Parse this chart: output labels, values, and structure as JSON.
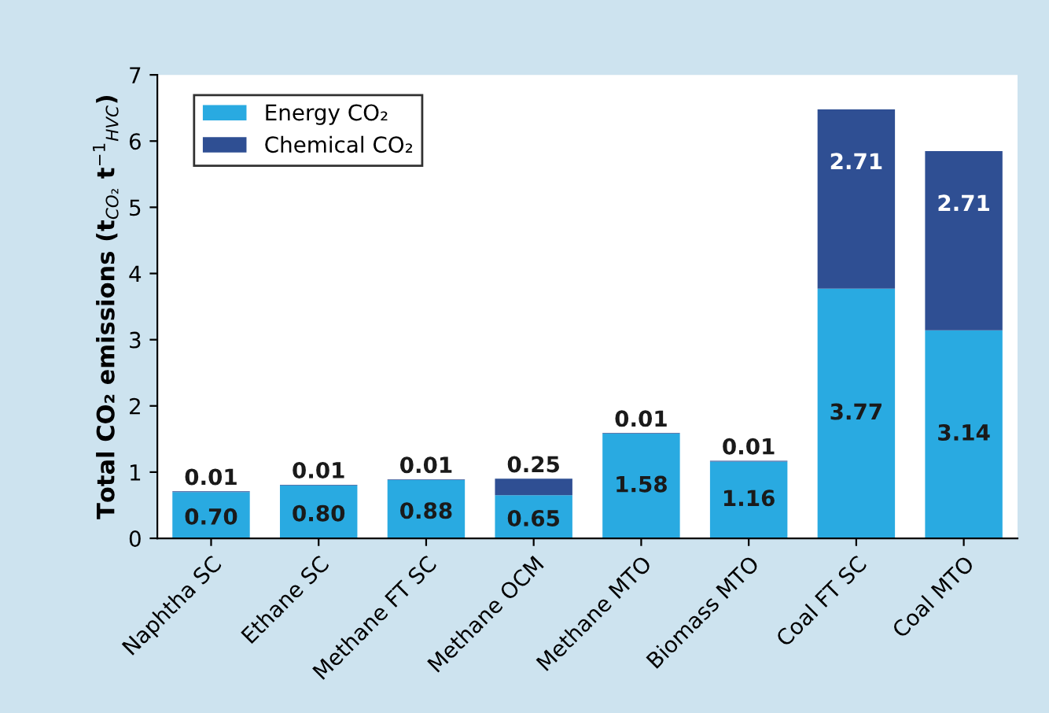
{
  "chart_data": {
    "type": "bar",
    "stacked": true,
    "ylabel": "Total CO₂ emissions (t$_{CO₂}$ t$^{−1}$$_{HVC}$)",
    "categories": [
      "Naphtha SC",
      "Ethane SC",
      "Methane FT SC",
      "Methane OCM",
      "Methane MTO",
      "Biomass MTO",
      "Coal FT SC",
      "Coal MTO"
    ],
    "series": [
      {
        "name": "Energy CO₂",
        "color": "#29aae1",
        "values": [
          0.7,
          0.8,
          0.88,
          0.65,
          1.58,
          1.16,
          3.77,
          3.14
        ],
        "value_labels": [
          "0.70",
          "0.80",
          "0.88",
          "0.65",
          "1.58",
          "1.16",
          "3.77",
          "3.14"
        ]
      },
      {
        "name": "Chemical CO₂",
        "color": "#2f4f93",
        "values": [
          0.01,
          0.01,
          0.01,
          0.25,
          0.01,
          0.01,
          2.71,
          2.71
        ],
        "value_labels": [
          "0.01",
          "0.01",
          "0.01",
          "0.25",
          "0.01",
          "0.01",
          "2.71",
          "2.71"
        ]
      }
    ],
    "ylim": [
      0,
      7
    ],
    "yticks": [
      0,
      1,
      2,
      3,
      4,
      5,
      6,
      7
    ],
    "legend": "top left",
    "grid": false
  }
}
